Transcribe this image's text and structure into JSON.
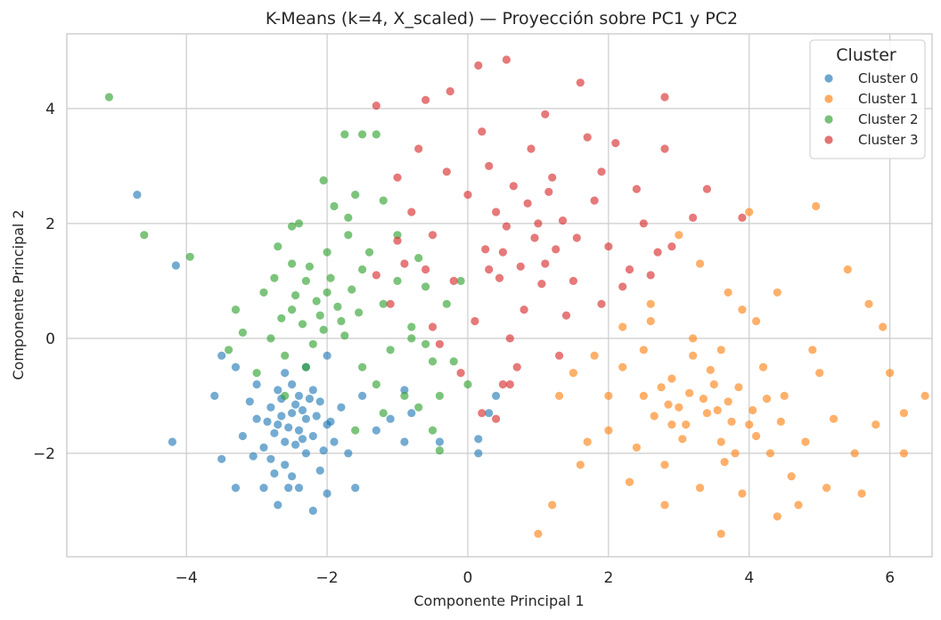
{
  "chart_data": {
    "type": "scatter",
    "title": "K-Means (k=4, X_scaled) — Proyección sobre PC1 y PC2",
    "xlabel": "Componente Principal 1",
    "ylabel": "Componente Principal 2",
    "xlim": [
      -5.7,
      6.6
    ],
    "ylim": [
      -3.8,
      5.3
    ],
    "xticks": [
      -4,
      -2,
      0,
      2,
      4,
      6
    ],
    "yticks": [
      -2,
      0,
      2,
      4
    ],
    "xtick_labels": [
      "−4",
      "−2",
      "0",
      "2",
      "4",
      "6"
    ],
    "ytick_labels": [
      "−2",
      "0",
      "2",
      "4"
    ],
    "grid": true,
    "legend": {
      "title": "Cluster",
      "placement": "top-right"
    },
    "series": [
      {
        "name": "Cluster 0",
        "color": "#1f77b4",
        "points": [
          [
            -2.5,
            -1.3
          ],
          [
            -2.7,
            -1.5
          ],
          [
            -2.4,
            -1.0
          ],
          [
            -2.6,
            -1.8
          ],
          [
            -2.3,
            -1.4
          ],
          [
            -2.8,
            -1.2
          ],
          [
            -2.2,
            -1.7
          ],
          [
            -2.5,
            -0.8
          ],
          [
            -2.9,
            -1.9
          ],
          [
            -2.1,
            -1.1
          ],
          [
            -2.6,
            -2.2
          ],
          [
            -2.4,
            -1.6
          ],
          [
            -3.0,
            -1.4
          ],
          [
            -2.0,
            -1.5
          ],
          [
            -2.7,
            -0.9
          ],
          [
            -2.3,
            -2.0
          ],
          [
            -2.5,
            -2.4
          ],
          [
            -2.8,
            -2.1
          ],
          [
            -2.2,
            -0.9
          ],
          [
            -3.1,
            -1.1
          ],
          [
            -2.6,
            -0.6
          ],
          [
            -2.4,
            -2.6
          ],
          [
            -2.9,
            -2.6
          ],
          [
            -1.9,
            -1.8
          ],
          [
            -2.1,
            -2.3
          ],
          [
            -3.2,
            -1.7
          ],
          [
            -2.7,
            -2.9
          ],
          [
            -1.8,
            -1.2
          ],
          [
            -2.3,
            -0.5
          ],
          [
            -3.0,
            -0.8
          ],
          [
            -3.6,
            -1.0
          ],
          [
            -3.5,
            -2.1
          ],
          [
            -4.2,
            -1.8
          ],
          [
            -4.7,
            2.5
          ],
          [
            -4.15,
            1.27
          ],
          [
            -3.3,
            -2.6
          ],
          [
            -2.2,
            -3.0
          ],
          [
            -1.6,
            -2.6
          ],
          [
            -1.7,
            -2.0
          ],
          [
            -1.3,
            -1.6
          ],
          [
            -0.9,
            -1.8
          ],
          [
            -0.4,
            -1.8
          ],
          [
            0.15,
            -2.0
          ],
          [
            0.15,
            -1.75
          ],
          [
            0.4,
            -1.0
          ],
          [
            0.3,
            -1.3
          ],
          [
            -0.9,
            -0.9
          ],
          [
            -1.1,
            -1.4
          ],
          [
            -0.8,
            -1.3
          ],
          [
            -2.0,
            -0.3
          ],
          [
            -3.5,
            -0.3
          ],
          [
            -3.3,
            -0.5
          ],
          [
            -1.5,
            -1.0
          ],
          [
            -2.0,
            -2.7
          ],
          [
            -2.55,
            -2.6
          ],
          [
            -2.45,
            -1.15
          ],
          [
            -2.35,
            -1.25
          ],
          [
            -2.65,
            -1.35
          ],
          [
            -2.55,
            -1.55
          ],
          [
            -2.75,
            -1.65
          ],
          [
            -2.15,
            -1.35
          ],
          [
            -2.45,
            -1.85
          ],
          [
            -2.85,
            -1.45
          ],
          [
            -2.25,
            -1.05
          ],
          [
            -2.65,
            -1.05
          ],
          [
            -2.35,
            -1.75
          ],
          [
            -2.05,
            -1.95
          ],
          [
            -3.05,
            -2.05
          ],
          [
            -1.95,
            -1.45
          ],
          [
            -2.75,
            -2.35
          ]
        ]
      },
      {
        "name": "Cluster 1",
        "color": "#ff7f0e",
        "points": [
          [
            3.5,
            -0.8
          ],
          [
            3.0,
            -1.2
          ],
          [
            4.0,
            -1.5
          ],
          [
            3.2,
            -0.3
          ],
          [
            2.5,
            -1.0
          ],
          [
            3.8,
            -2.0
          ],
          [
            4.5,
            -1.0
          ],
          [
            2.8,
            -2.2
          ],
          [
            3.6,
            -1.8
          ],
          [
            4.2,
            -0.5
          ],
          [
            2.2,
            -0.5
          ],
          [
            3.3,
            -2.6
          ],
          [
            4.8,
            -1.8
          ],
          [
            5.2,
            -1.4
          ],
          [
            2.0,
            -1.6
          ],
          [
            3.9,
            0.5
          ],
          [
            4.6,
            -2.4
          ],
          [
            2.6,
            0.3
          ],
          [
            5.0,
            -0.6
          ],
          [
            3.1,
            -1.5
          ],
          [
            3.7,
            -1.1
          ],
          [
            4.3,
            -2.0
          ],
          [
            2.9,
            -0.7
          ],
          [
            3.4,
            -1.3
          ],
          [
            4.1,
            -1.7
          ],
          [
            2.4,
            -1.9
          ],
          [
            5.5,
            -2.0
          ],
          [
            5.8,
            -1.5
          ],
          [
            6.2,
            -2.0
          ],
          [
            6.0,
            -0.6
          ],
          [
            6.5,
            -1.0
          ],
          [
            5.4,
            1.2
          ],
          [
            4.95,
            2.3
          ],
          [
            4.0,
            2.2
          ],
          [
            3.3,
            1.3
          ],
          [
            3.0,
            1.8
          ],
          [
            2.6,
            0.6
          ],
          [
            2.2,
            0.2
          ],
          [
            1.5,
            -0.6
          ],
          [
            1.3,
            -1.0
          ],
          [
            1.6,
            -2.2
          ],
          [
            1.2,
            -2.9
          ],
          [
            1.0,
            -3.4
          ],
          [
            3.6,
            -3.4
          ],
          [
            4.4,
            -3.1
          ],
          [
            5.1,
            -2.6
          ],
          [
            4.7,
            -2.9
          ],
          [
            5.6,
            -2.7
          ],
          [
            1.8,
            -0.3
          ],
          [
            2.0,
            -1.0
          ],
          [
            1.7,
            -1.8
          ],
          [
            2.3,
            -2.5
          ],
          [
            2.8,
            -2.9
          ],
          [
            3.9,
            -2.7
          ],
          [
            4.9,
            -0.2
          ],
          [
            5.7,
            0.6
          ],
          [
            6.2,
            -1.3
          ],
          [
            5.9,
            0.2
          ],
          [
            3.7,
            0.8
          ],
          [
            4.4,
            0.8
          ],
          [
            4.1,
            0.3
          ],
          [
            3.2,
            0.0
          ],
          [
            2.5,
            -0.2
          ],
          [
            3.6,
            -0.2
          ],
          [
            2.9,
            -1.5
          ],
          [
            3.35,
            -1.05
          ],
          [
            3.75,
            -1.45
          ],
          [
            3.15,
            -0.95
          ],
          [
            3.55,
            -1.25
          ],
          [
            2.85,
            -1.15
          ],
          [
            4.05,
            -1.25
          ],
          [
            3.45,
            -0.55
          ],
          [
            2.65,
            -1.35
          ],
          [
            3.85,
            -0.85
          ],
          [
            4.25,
            -1.05
          ],
          [
            3.05,
            -1.75
          ],
          [
            2.75,
            -0.85
          ],
          [
            3.65,
            -2.15
          ],
          [
            4.45,
            -1.45
          ]
        ]
      },
      {
        "name": "Cluster 2",
        "color": "#2ca02c",
        "points": [
          [
            -2.0,
            0.8
          ],
          [
            -2.5,
            0.5
          ],
          [
            -1.5,
            1.2
          ],
          [
            -2.8,
            0.0
          ],
          [
            -1.8,
            0.3
          ],
          [
            -2.3,
            1.0
          ],
          [
            -1.2,
            0.6
          ],
          [
            -2.6,
            -0.3
          ],
          [
            -1.5,
            -0.5
          ],
          [
            -2.0,
            1.5
          ],
          [
            -1.0,
            1.0
          ],
          [
            -2.9,
            0.8
          ],
          [
            -2.2,
            -0.1
          ],
          [
            -1.7,
            1.8
          ],
          [
            -0.8,
            0.2
          ],
          [
            -2.5,
            1.3
          ],
          [
            -1.3,
            -0.8
          ],
          [
            -3.2,
            0.1
          ],
          [
            -1.9,
            2.3
          ],
          [
            -0.6,
            0.9
          ],
          [
            -2.7,
            1.6
          ],
          [
            -1.1,
            -0.2
          ],
          [
            -3.0,
            -0.6
          ],
          [
            -1.6,
            2.5
          ],
          [
            -0.5,
            -0.4
          ],
          [
            -2.1,
            0.4
          ],
          [
            -1.4,
            1.5
          ],
          [
            -0.9,
            -1.0
          ],
          [
            -2.4,
            2.0
          ],
          [
            -1.0,
            1.8
          ],
          [
            -5.1,
            4.2
          ],
          [
            -4.6,
            1.8
          ],
          [
            -3.95,
            1.42
          ],
          [
            -1.75,
            3.55
          ],
          [
            -1.5,
            3.55
          ],
          [
            -1.3,
            3.55
          ],
          [
            -2.05,
            2.75
          ],
          [
            -0.8,
            0.0
          ],
          [
            -0.2,
            -0.4
          ],
          [
            0.0,
            -0.8
          ],
          [
            -0.5,
            -1.6
          ],
          [
            -0.7,
            -1.2
          ],
          [
            -0.4,
            -1.0
          ],
          [
            -0.6,
            -0.1
          ],
          [
            -1.2,
            -1.3
          ],
          [
            -1.6,
            -1.6
          ],
          [
            -2.3,
            -0.5
          ],
          [
            -2.6,
            -1.0
          ],
          [
            -3.3,
            0.5
          ],
          [
            -3.4,
            -0.2
          ],
          [
            -2.5,
            1.95
          ],
          [
            -1.7,
            2.1
          ],
          [
            -1.2,
            2.4
          ],
          [
            -0.7,
            1.4
          ],
          [
            -0.3,
            0.6
          ],
          [
            -0.1,
            1.0
          ],
          [
            -0.4,
            -1.95
          ],
          [
            -2.15,
            0.65
          ],
          [
            -2.35,
            0.25
          ],
          [
            -1.85,
            0.55
          ],
          [
            -2.05,
            0.15
          ],
          [
            -2.45,
            0.75
          ],
          [
            -1.65,
            0.85
          ],
          [
            -2.25,
            1.25
          ],
          [
            -1.95,
            1.05
          ],
          [
            -2.65,
            0.35
          ],
          [
            -1.75,
            0.05
          ],
          [
            -1.55,
            0.45
          ],
          [
            -2.75,
            1.05
          ]
        ]
      },
      {
        "name": "Cluster 3",
        "color": "#d62728",
        "points": [
          [
            0.5,
            1.5
          ],
          [
            1.0,
            2.0
          ],
          [
            0.0,
            2.5
          ],
          [
            1.5,
            1.0
          ],
          [
            -0.5,
            1.8
          ],
          [
            0.8,
            0.5
          ],
          [
            1.2,
            2.8
          ],
          [
            -0.2,
            1.0
          ],
          [
            2.0,
            1.6
          ],
          [
            0.3,
            3.0
          ],
          [
            1.8,
            2.4
          ],
          [
            -0.8,
            2.2
          ],
          [
            0.6,
            0.0
          ],
          [
            1.4,
            0.4
          ],
          [
            2.3,
            1.2
          ],
          [
            -0.3,
            2.9
          ],
          [
            0.9,
            3.3
          ],
          [
            1.7,
            3.5
          ],
          [
            -0.6,
            1.2
          ],
          [
            2.5,
            2.0
          ],
          [
            0.1,
            0.3
          ],
          [
            1.1,
            1.3
          ],
          [
            2.7,
            1.5
          ],
          [
            -1.0,
            1.7
          ],
          [
            0.4,
            2.2
          ],
          [
            1.9,
            0.6
          ],
          [
            0.7,
            -0.5
          ],
          [
            1.3,
            -0.3
          ],
          [
            -0.1,
            -0.6
          ],
          [
            2.2,
            0.9
          ],
          [
            1.6,
            4.45
          ],
          [
            0.55,
            4.85
          ],
          [
            0.15,
            4.75
          ],
          [
            -0.25,
            4.3
          ],
          [
            -0.6,
            4.15
          ],
          [
            -1.3,
            4.05
          ],
          [
            2.8,
            4.2
          ],
          [
            2.1,
            3.4
          ],
          [
            2.8,
            3.3
          ],
          [
            3.2,
            2.1
          ],
          [
            3.9,
            2.1
          ],
          [
            3.4,
            2.6
          ],
          [
            2.9,
            1.6
          ],
          [
            2.6,
            1.1
          ],
          [
            0.5,
            -0.8
          ],
          [
            0.2,
            -1.3
          ],
          [
            0.4,
            -1.4
          ],
          [
            0.6,
            -0.8
          ],
          [
            -0.4,
            -0.1
          ],
          [
            -1.1,
            0.6
          ],
          [
            -1.3,
            1.1
          ],
          [
            -1.0,
            2.8
          ],
          [
            -0.7,
            3.3
          ],
          [
            0.2,
            3.6
          ],
          [
            1.1,
            3.9
          ],
          [
            1.9,
            2.9
          ],
          [
            2.4,
            2.6
          ],
          [
            -0.5,
            0.2
          ],
          [
            -0.9,
            1.3
          ],
          [
            0.3,
            1.2
          ],
          [
            0.75,
            1.25
          ],
          [
            0.95,
            1.75
          ],
          [
            1.25,
            1.55
          ],
          [
            0.55,
            1.95
          ],
          [
            1.05,
            0.95
          ],
          [
            0.45,
            1.05
          ],
          [
            1.35,
            2.05
          ],
          [
            0.85,
            2.35
          ],
          [
            1.55,
            1.75
          ],
          [
            0.25,
            1.55
          ],
          [
            1.15,
            2.55
          ],
          [
            0.65,
            2.65
          ]
        ]
      }
    ]
  }
}
